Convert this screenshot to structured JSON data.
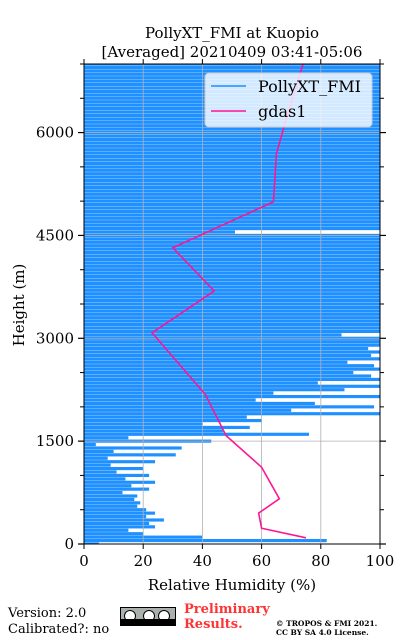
{
  "chart_data": {
    "type": "line",
    "title": "PollyXT_FMI at Kuopio",
    "subtitle": "[Averaged] 20210409 03:41-05:06",
    "xlabel": "Relative Humidity (%)",
    "ylabel": "Height (m)",
    "xlim": [
      0,
      100
    ],
    "ylim": [
      0,
      7000
    ],
    "xticks": [
      "0",
      "20",
      "40",
      "60",
      "80",
      "100"
    ],
    "yticks": [
      "0",
      "1500",
      "3000",
      "4500",
      "6000"
    ],
    "grid": true,
    "legend": "top-right",
    "series": [
      {
        "name": "PollyXT_FMI",
        "color": "#1e90ff",
        "profile": [
          [
            0,
            5
          ],
          [
            50,
            82
          ],
          [
            100,
            40
          ],
          [
            150,
            20
          ],
          [
            200,
            15
          ],
          [
            250,
            24
          ],
          [
            300,
            22
          ],
          [
            350,
            27
          ],
          [
            400,
            21
          ],
          [
            450,
            24
          ],
          [
            500,
            21
          ],
          [
            550,
            18
          ],
          [
            600,
            19
          ],
          [
            650,
            17
          ],
          [
            700,
            18
          ],
          [
            750,
            13
          ],
          [
            800,
            22
          ],
          [
            850,
            16
          ],
          [
            900,
            24
          ],
          [
            950,
            14
          ],
          [
            1000,
            22
          ],
          [
            1050,
            11
          ],
          [
            1100,
            20
          ],
          [
            1150,
            9
          ],
          [
            1200,
            24
          ],
          [
            1250,
            8
          ],
          [
            1300,
            31
          ],
          [
            1350,
            10
          ],
          [
            1400,
            33
          ],
          [
            1450,
            4
          ],
          [
            1500,
            43
          ],
          [
            1550,
            15
          ],
          [
            1600,
            76
          ],
          [
            1650,
            47
          ],
          [
            1700,
            56
          ],
          [
            1750,
            40
          ],
          [
            1800,
            60
          ],
          [
            1850,
            55
          ],
          [
            1900,
            100
          ],
          [
            1950,
            70
          ],
          [
            2000,
            98
          ],
          [
            2050,
            78
          ],
          [
            2100,
            58
          ],
          [
            2150,
            100
          ],
          [
            2200,
            64
          ],
          [
            2250,
            88
          ],
          [
            2300,
            100
          ],
          [
            2350,
            79
          ],
          [
            2400,
            100
          ],
          [
            2450,
            97
          ],
          [
            2500,
            91
          ],
          [
            2550,
            100
          ],
          [
            2600,
            98
          ],
          [
            2650,
            89
          ],
          [
            2700,
            100
          ],
          [
            2750,
            97
          ],
          [
            2800,
            100
          ],
          [
            2850,
            96
          ],
          [
            2900,
            100
          ],
          [
            2950,
            100
          ],
          [
            3000,
            100
          ],
          [
            3050,
            87
          ],
          [
            3100,
            100
          ],
          [
            3150,
            100
          ],
          [
            3200,
            100
          ],
          [
            3250,
            100
          ],
          [
            3300,
            100
          ],
          [
            3350,
            100
          ],
          [
            3400,
            100
          ],
          [
            3450,
            100
          ],
          [
            3500,
            100
          ],
          [
            3550,
            100
          ],
          [
            3600,
            100
          ],
          [
            3650,
            100
          ],
          [
            3700,
            100
          ],
          [
            3750,
            100
          ],
          [
            3800,
            100
          ],
          [
            3850,
            100
          ],
          [
            3900,
            100
          ],
          [
            3950,
            100
          ],
          [
            4000,
            100
          ],
          [
            4050,
            100
          ],
          [
            4100,
            100
          ],
          [
            4150,
            100
          ],
          [
            4200,
            100
          ],
          [
            4250,
            100
          ],
          [
            4300,
            100
          ],
          [
            4350,
            100
          ],
          [
            4400,
            100
          ],
          [
            4450,
            100
          ],
          [
            4500,
            100
          ],
          [
            4550,
            51
          ],
          [
            4600,
            100
          ],
          [
            4650,
            100
          ],
          [
            4700,
            100
          ],
          [
            4750,
            100
          ],
          [
            4800,
            100
          ],
          [
            4850,
            100
          ],
          [
            4900,
            100
          ],
          [
            4950,
            100
          ],
          [
            5000,
            100
          ],
          [
            5050,
            100
          ],
          [
            5100,
            100
          ],
          [
            5150,
            100
          ],
          [
            5200,
            100
          ],
          [
            5250,
            100
          ],
          [
            5300,
            100
          ],
          [
            5350,
            100
          ],
          [
            5400,
            100
          ],
          [
            5450,
            100
          ],
          [
            5500,
            100
          ],
          [
            5550,
            100
          ],
          [
            5600,
            100
          ],
          [
            5650,
            100
          ],
          [
            5700,
            100
          ],
          [
            5750,
            100
          ],
          [
            5800,
            100
          ],
          [
            5850,
            100
          ],
          [
            5900,
            100
          ],
          [
            5950,
            100
          ],
          [
            6000,
            100
          ],
          [
            6050,
            100
          ],
          [
            6100,
            100
          ],
          [
            6150,
            100
          ],
          [
            6200,
            100
          ],
          [
            6250,
            100
          ],
          [
            6300,
            100
          ],
          [
            6350,
            100
          ],
          [
            6400,
            100
          ],
          [
            6450,
            100
          ],
          [
            6500,
            100
          ],
          [
            6550,
            100
          ],
          [
            6600,
            100
          ],
          [
            6650,
            100
          ],
          [
            6700,
            100
          ],
          [
            6750,
            100
          ],
          [
            6800,
            100
          ],
          [
            6850,
            100
          ],
          [
            6900,
            100
          ],
          [
            6950,
            100
          ],
          [
            7000,
            100
          ]
        ]
      },
      {
        "name": "gdas1",
        "color": "#ff1493",
        "points": [
          [
            75,
            90
          ],
          [
            60,
            230
          ],
          [
            59,
            450
          ],
          [
            66,
            660
          ],
          [
            60,
            1120
          ],
          [
            48,
            1580
          ],
          [
            41,
            2180
          ],
          [
            23,
            3080
          ],
          [
            44,
            3690
          ],
          [
            30,
            4320
          ],
          [
            64,
            4990
          ],
          [
            65,
            5690
          ],
          [
            69,
            6300
          ],
          [
            74,
            7000
          ]
        ]
      }
    ]
  },
  "footer": {
    "version": "Version: 2.0",
    "calibrated": "Calibrated?: no",
    "license_badge": "cc-by-sa-badge",
    "preliminary_line1": "Preliminary",
    "preliminary_line2": "Results.",
    "copyright_line1": "© TROPOS & FMI 2021.",
    "copyright_line2": "CC BY SA 4.0 License."
  }
}
